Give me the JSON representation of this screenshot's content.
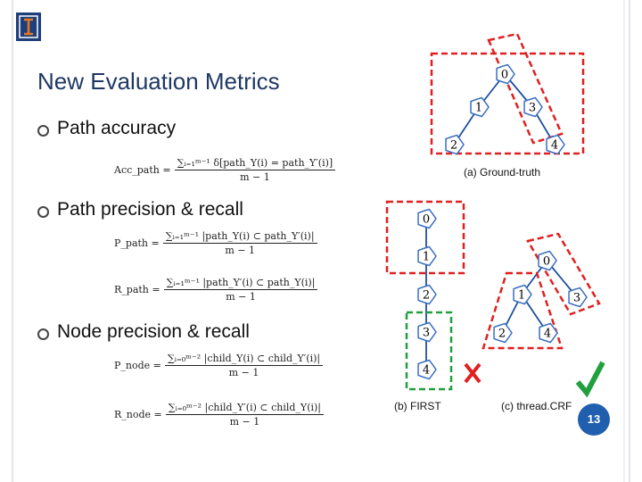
{
  "header": {
    "title": "New Evaluation Metrics",
    "page_number": "13"
  },
  "bullets": [
    {
      "text": "Path accuracy",
      "formulas": [
        {
          "lhs": "Acc_path =",
          "numerator": "∑ᵢ₌₁ᵐ⁻¹ δ[path_Y(i) = path_Y′(i)]",
          "denominator": "m − 1"
        }
      ]
    },
    {
      "text": "Path precision & recall",
      "formulas": [
        {
          "lhs": "P_path =",
          "numerator": "∑ᵢ₌₁ᵐ⁻¹ |path_Y(i) ⊂ path_Y′(i)|",
          "denominator": "m − 1"
        },
        {
          "lhs": "R_path =",
          "numerator": "∑ᵢ₌₁ᵐ⁻¹ |path_Y′(i) ⊂ path_Y(i)|",
          "denominator": "m − 1"
        }
      ]
    },
    {
      "text": "Node precision & recall",
      "formulas": [
        {
          "lhs": "P_node =",
          "numerator": "∑ᵢ₌₀ᵐ⁻² |child_Y(i) ⊂ child_Y′(i)|",
          "denominator": "m − 1"
        },
        {
          "lhs": "R_node =",
          "numerator": "∑ᵢ₌₀ᵐ⁻² |child_Y′(i) ⊂ child_Y(i)|",
          "denominator": "m − 1"
        }
      ]
    }
  ],
  "figures": [
    {
      "caption": "(a) Ground-truth",
      "nodes": [
        {
          "label": "0"
        },
        {
          "label": "1"
        },
        {
          "label": "3"
        },
        {
          "label": "2"
        },
        {
          "label": "4"
        }
      ]
    },
    {
      "caption": "(b) FIRST",
      "nodes": [
        {
          "label": "0"
        },
        {
          "label": "1"
        },
        {
          "label": "2"
        },
        {
          "label": "3"
        },
        {
          "label": "4"
        }
      ]
    },
    {
      "caption": "(c) thread.CRF",
      "nodes": [
        {
          "label": "0"
        },
        {
          "label": "1"
        },
        {
          "label": "3"
        },
        {
          "label": "2"
        },
        {
          "label": "4"
        }
      ]
    }
  ]
}
